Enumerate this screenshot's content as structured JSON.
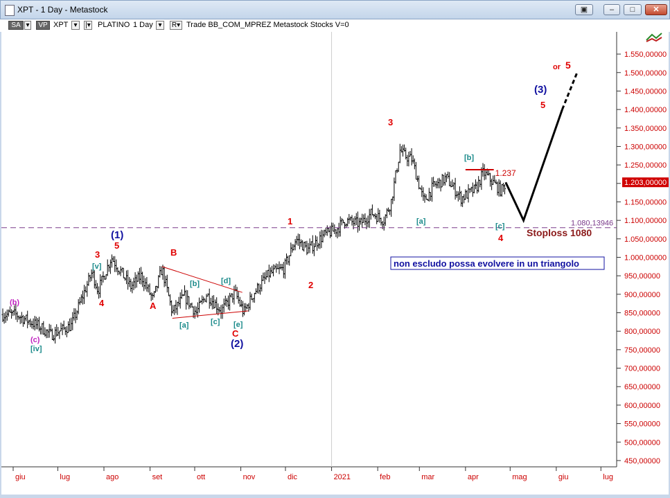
{
  "window": {
    "title": "XPT - 1 Day - Metastock"
  },
  "toolbar": {
    "sa": "SA",
    "vp": "VP",
    "symbol": "XPT",
    "symbol_name": "PLATINO",
    "period": "1 Day",
    "rest": "Trade  BB_COM_MPREZ  Metastock  Stocks  V=0"
  },
  "colors": {
    "axis_red": "#cc0000",
    "wave_red": "#e00000",
    "wave_blue": "#1010a0",
    "wave_teal": "#1a8a8a",
    "wave_magenta": "#c020c0",
    "bars": "#000000",
    "stoploss": "#8b1a1a"
  },
  "chart_data": {
    "type": "ohlc",
    "title": "XPT - 1 Day",
    "x_months": [
      "giu",
      "lug",
      "ago",
      "set",
      "ott",
      "nov",
      "dic",
      "2021",
      "feb",
      "mar",
      "apr",
      "mag",
      "giu",
      "lug"
    ],
    "y_ticks": [
      "1.550,00000",
      "1.500,00000",
      "1.450,00000",
      "1.400,00000",
      "1.350,00000",
      "1.300,00000",
      "1.250,00000",
      "1.200,00000",
      "1.150,00000",
      "1.100,00000",
      "1.050,00000",
      "1.000,00000",
      "950,00000",
      "900,00000",
      "850,00000",
      "800,00000",
      "750,00000",
      "700,00000",
      "650,00000",
      "600,00000",
      "550,00000",
      "500,00000",
      "450,00000"
    ],
    "ylim": [
      420,
      1580
    ],
    "last_price_label": "1.203,00000",
    "price_path": [
      [
        "2020-06-03",
        845
      ],
      [
        "2020-06-20",
        810
      ],
      [
        "2020-06-26",
        790
      ],
      [
        "2020-07-10",
        815
      ],
      [
        "2020-07-24",
        960
      ],
      [
        "2020-07-28",
        910
      ],
      [
        "2020-08-06",
        1000
      ],
      [
        "2020-08-19",
        920
      ],
      [
        "2020-08-26",
        950
      ],
      [
        "2020-09-03",
        885
      ],
      [
        "2020-09-09",
        970
      ],
      [
        "2020-09-16",
        850
      ],
      [
        "2020-09-24",
        895
      ],
      [
        "2020-10-02",
        850
      ],
      [
        "2020-10-09",
        900
      ],
      [
        "2020-10-19",
        855
      ],
      [
        "2020-10-28",
        905
      ],
      [
        "2020-11-03",
        850
      ],
      [
        "2020-11-10",
        905
      ],
      [
        "2020-11-20",
        955
      ],
      [
        "2020-11-30",
        970
      ],
      [
        "2020-12-08",
        1050
      ],
      [
        "2020-12-16",
        1020
      ],
      [
        "2020-12-27",
        1060
      ],
      [
        "2021-01-04",
        1075
      ],
      [
        "2021-01-10",
        1100
      ],
      [
        "2021-01-20",
        1090
      ],
      [
        "2021-01-28",
        1120
      ],
      [
        "2021-02-05",
        1100
      ],
      [
        "2021-02-10",
        1150
      ],
      [
        "2021-02-16",
        1290
      ],
      [
        "2021-02-19",
        1275
      ],
      [
        "2021-02-24",
        1265
      ],
      [
        "2021-03-04",
        1150
      ],
      [
        "2021-03-10",
        1190
      ],
      [
        "2021-03-19",
        1215
      ],
      [
        "2021-03-29",
        1160
      ],
      [
        "2021-04-08",
        1185
      ],
      [
        "2021-04-13",
        1230
      ],
      [
        "2021-04-20",
        1200
      ],
      [
        "2021-04-25",
        1180
      ],
      [
        "2021-04-28",
        1200
      ]
    ],
    "projection": [
      [
        "2021-04-28",
        1203
      ],
      [
        "2021-05-10",
        1100
      ],
      [
        "2021-06-05",
        1400
      ]
    ],
    "projection_dashed": [
      [
        "2021-06-05",
        1400
      ],
      [
        "2021-06-15",
        1500
      ]
    ],
    "levels": [
      {
        "label": "1.080,13946",
        "value": 1080.13946,
        "style": "dashed"
      },
      {
        "label": "1.237",
        "value": 1237,
        "style": "solid"
      }
    ],
    "wave_labels": [
      {
        "text": "]",
        "color": "teal"
      },
      {
        "text": "(b)",
        "color": "magenta"
      },
      {
        "text": ")",
        "color": "magenta"
      },
      {
        "text": "(c)",
        "color": "magenta"
      },
      {
        "text": "[iv]",
        "color": "teal"
      },
      {
        "text": "3",
        "color": "red"
      },
      {
        "text": "[v]",
        "color": "teal"
      },
      {
        "text": "4",
        "color": "red"
      },
      {
        "text": "(1)",
        "color": "blue"
      },
      {
        "text": "5",
        "color": "red"
      },
      {
        "text": "A",
        "color": "red"
      },
      {
        "text": "B",
        "color": "red"
      },
      {
        "text": "[b]",
        "color": "teal"
      },
      {
        "text": "[d]",
        "color": "teal"
      },
      {
        "text": "[a]",
        "color": "teal"
      },
      {
        "text": "[c]",
        "color": "teal"
      },
      {
        "text": "[e]",
        "color": "teal"
      },
      {
        "text": "C",
        "color": "red"
      },
      {
        "text": "(2)",
        "color": "blue"
      },
      {
        "text": "1",
        "color": "red"
      },
      {
        "text": "2",
        "color": "red"
      },
      {
        "text": "3",
        "color": "red"
      },
      {
        "text": "[a]",
        "color": "teal"
      },
      {
        "text": "[b]",
        "color": "teal"
      },
      {
        "text": "[c]",
        "color": "teal"
      },
      {
        "text": "4",
        "color": "red"
      },
      {
        "text": "(3)",
        "color": "blue"
      },
      {
        "text": "5",
        "color": "red"
      },
      {
        "text": "or",
        "color": "red"
      },
      {
        "text": "5",
        "color": "red"
      }
    ],
    "annotations": {
      "stoploss": "Stoploss 1080",
      "triangle_note": "non escludo possa evolvere in un triangolo"
    }
  }
}
